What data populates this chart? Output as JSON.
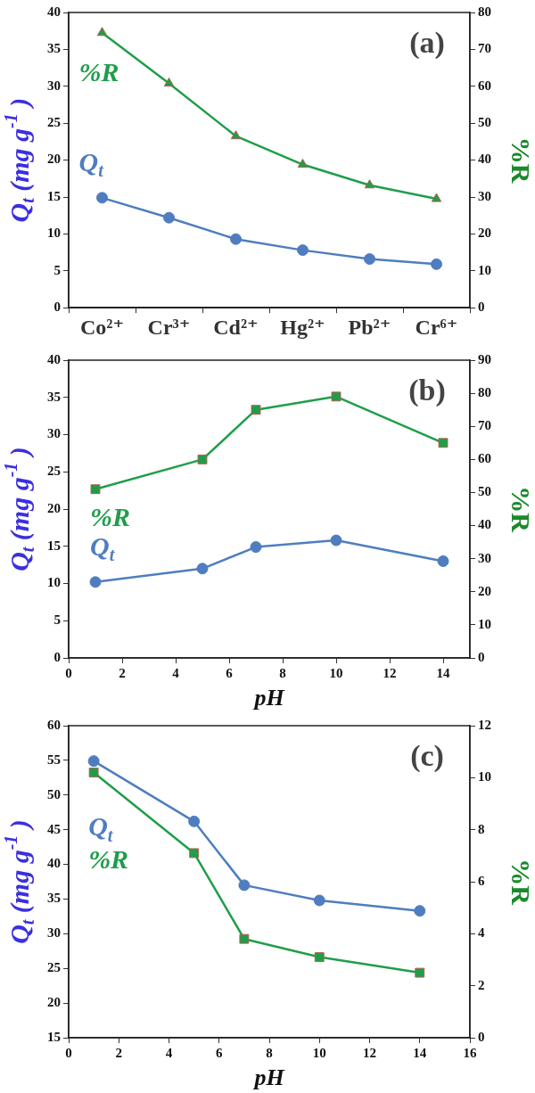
{
  "chart_data": [
    {
      "type": "line",
      "annotations": [
        "(a)"
      ],
      "categories": [
        "Co²⁺",
        "Cr³⁺",
        "Cd²⁺",
        "Hg²⁺",
        "Pb²⁺",
        "Cr⁶⁺"
      ],
      "ylabel": "Q$_{t}$ (mg g$^{-1}$ )",
      "y2label": "%R",
      "ylim": [
        0,
        40
      ],
      "yticks": [
        0,
        5,
        10,
        15,
        20,
        25,
        30,
        35,
        40
      ],
      "y2lim": [
        0,
        80
      ],
      "y2ticks": [
        0,
        10,
        20,
        30,
        40,
        50,
        60,
        70,
        80
      ],
      "series": [
        {
          "name": "Q$_{t}$",
          "color": "#4f7dc0",
          "marker": "circle",
          "values": [
            14.9,
            12.2,
            9.3,
            7.8,
            6.6,
            5.9
          ]
        },
        {
          "name": "%R",
          "color": "#1f9e4a",
          "marker": "triangle",
          "axis": "y2",
          "values": [
            74.5,
            60.8,
            46.5,
            38.8,
            33.2,
            29.5
          ]
        }
      ]
    },
    {
      "type": "line",
      "annotations": [
        "(b)"
      ],
      "x": [
        1,
        5,
        7,
        10,
        14
      ],
      "xlabel": "pH",
      "ylabel": "Q$_{t}$ (mg g$^{-1}$ )",
      "y2label": "%R",
      "xlim": [
        0,
        15
      ],
      "xticks": [
        0,
        2,
        4,
        6,
        8,
        10,
        12,
        14
      ],
      "ylim": [
        0,
        40
      ],
      "yticks": [
        0,
        5,
        10,
        15,
        20,
        25,
        30,
        35,
        40
      ],
      "y2lim": [
        0,
        90
      ],
      "y2ticks": [
        0,
        10,
        20,
        30,
        40,
        50,
        60,
        70,
        80,
        90
      ],
      "series": [
        {
          "name": "Q$_{t}$",
          "color": "#4f7dc0",
          "marker": "circle",
          "values": [
            10.2,
            12.0,
            14.9,
            15.8,
            13.0
          ]
        },
        {
          "name": "%R",
          "color": "#1f9e4a",
          "marker": "square",
          "axis": "y2",
          "values": [
            51,
            60,
            75,
            79,
            65
          ]
        }
      ]
    },
    {
      "type": "line",
      "annotations": [
        "(c)"
      ],
      "x": [
        1,
        5,
        7,
        10,
        14
      ],
      "xlabel": "pH",
      "ylabel": "Q$_{t}$ (mg g$^{-1}$ )",
      "y2label": "%R",
      "xlim": [
        0,
        16
      ],
      "xticks": [
        0,
        2,
        4,
        6,
        8,
        10,
        12,
        14,
        16
      ],
      "ylim": [
        15,
        60
      ],
      "yticks": [
        15,
        20,
        25,
        30,
        35,
        40,
        45,
        50,
        55,
        60
      ],
      "y2lim": [
        0,
        12
      ],
      "y2ticks": [
        0,
        2,
        4,
        6,
        8,
        10,
        12
      ],
      "series": [
        {
          "name": "Q$_{t}$",
          "color": "#4f7dc0",
          "marker": "circle",
          "values": [
            54.9,
            46.2,
            37.0,
            34.8,
            33.3
          ]
        },
        {
          "name": "%R",
          "color": "#1f9e4a",
          "marker": "square",
          "axis": "y2",
          "values": [
            10.2,
            7.1,
            3.8,
            3.1,
            2.5
          ]
        }
      ]
    }
  ]
}
